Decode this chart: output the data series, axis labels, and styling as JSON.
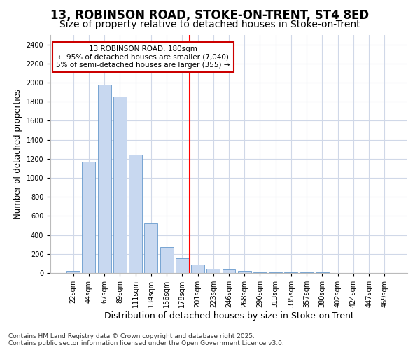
{
  "title": "13, ROBINSON ROAD, STOKE-ON-TRENT, ST4 8ED",
  "subtitle": "Size of property relative to detached houses in Stoke-on-Trent",
  "xlabel": "Distribution of detached houses by size in Stoke-on-Trent",
  "ylabel": "Number of detached properties",
  "categories": [
    "22sqm",
    "44sqm",
    "67sqm",
    "89sqm",
    "111sqm",
    "134sqm",
    "156sqm",
    "178sqm",
    "201sqm",
    "223sqm",
    "246sqm",
    "268sqm",
    "290sqm",
    "313sqm",
    "335sqm",
    "357sqm",
    "380sqm",
    "402sqm",
    "424sqm",
    "447sqm",
    "469sqm"
  ],
  "values": [
    25,
    1170,
    1980,
    1855,
    1245,
    520,
    275,
    155,
    90,
    45,
    40,
    20,
    10,
    8,
    5,
    5,
    5,
    3,
    3,
    3,
    3
  ],
  "bar_color": "#c8d8f0",
  "bar_edge_color": "#6699cc",
  "red_line_x": 7.5,
  "annotation_title": "13 ROBINSON ROAD: 180sqm",
  "annotation_line1": "← 95% of detached houses are smaller (7,040)",
  "annotation_line2": "5% of semi-detached houses are larger (355) →",
  "annotation_box_color": "#ffffff",
  "annotation_edge_color": "#cc0000",
  "ylim": [
    0,
    2500
  ],
  "yticks": [
    0,
    200,
    400,
    600,
    800,
    1000,
    1200,
    1400,
    1600,
    1800,
    2000,
    2200,
    2400
  ],
  "background_color": "#ffffff",
  "grid_color": "#d0d8e8",
  "footer1": "Contains HM Land Registry data © Crown copyright and database right 2025.",
  "footer2": "Contains public sector information licensed under the Open Government Licence v3.0.",
  "title_fontsize": 12,
  "subtitle_fontsize": 10,
  "tick_fontsize": 7,
  "ylabel_fontsize": 8.5,
  "xlabel_fontsize": 9,
  "footer_fontsize": 6.5
}
